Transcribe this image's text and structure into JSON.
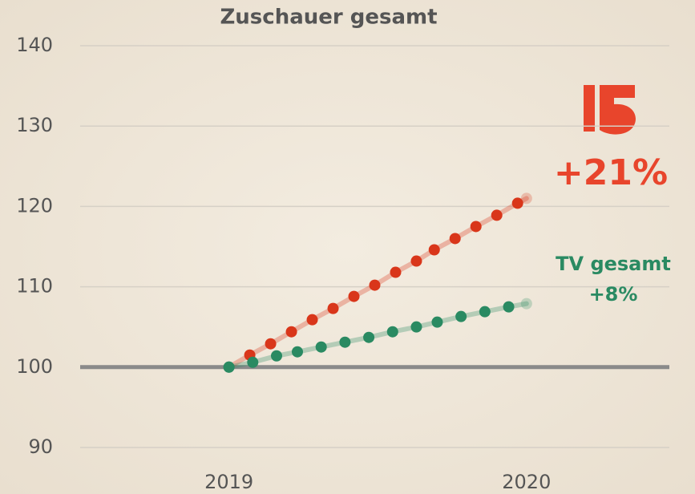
{
  "chart_data": {
    "type": "line",
    "title": "Zuschauer gesamt",
    "xlim": [
      2018.5,
      2020.48
    ],
    "xticks": [
      2019,
      2020
    ],
    "ylim": [
      88,
      141
    ],
    "yticks": [
      90,
      100,
      110,
      120,
      130,
      140
    ],
    "grid": true,
    "reference_line": 100,
    "series": [
      {
        "color": "#d9361a",
        "label_color": "#e8452c",
        "x": [
          2019,
          2019.07,
          2019.14,
          2019.21,
          2019.28,
          2019.35,
          2019.42,
          2019.49,
          2019.56,
          2019.63,
          2019.69,
          2019.76,
          2019.83,
          2019.9,
          2019.97,
          2020
        ],
        "values": [
          100,
          101.5,
          102.9,
          104.4,
          105.9,
          107.3,
          108.8,
          110.2,
          111.8,
          113.2,
          114.6,
          116.0,
          117.5,
          118.9,
          120.4,
          121.0
        ],
        "annotation": "+21%"
      },
      {
        "name": "TV gesamt",
        "color": "#2a8a62",
        "label_color": "#2a8a62",
        "x": [
          2019,
          2019.08,
          2019.16,
          2019.23,
          2019.31,
          2019.39,
          2019.47,
          2019.55,
          2019.63,
          2019.7,
          2019.78,
          2019.86,
          2019.94,
          2020
        ],
        "values": [
          100,
          100.6,
          101.4,
          101.9,
          102.5,
          103.1,
          103.7,
          104.4,
          105.0,
          105.6,
          106.3,
          106.9,
          107.5,
          107.9
        ],
        "annotation": "+8%"
      }
    ]
  }
}
